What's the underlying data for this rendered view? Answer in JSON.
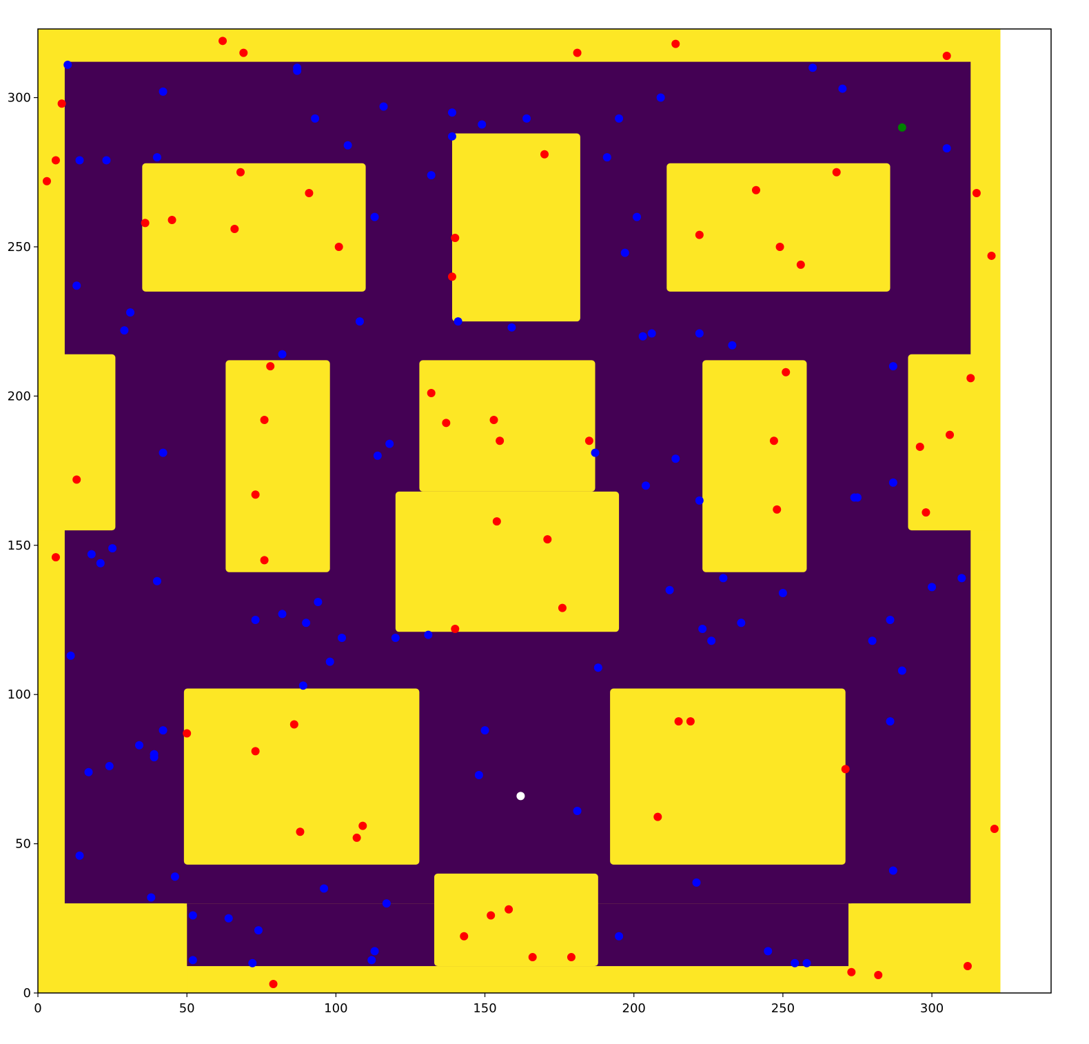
{
  "chart_data": {
    "type": "scatter",
    "title": "",
    "xlabel": "",
    "ylabel": "",
    "xlim": [
      0,
      340
    ],
    "ylim": [
      0,
      323
    ],
    "grid": false,
    "x_ticks": [
      0,
      50,
      100,
      150,
      200,
      250,
      300
    ],
    "y_ticks": [
      0,
      50,
      100,
      150,
      200,
      250,
      300
    ],
    "x_tick_labels": [
      "0",
      "50",
      "100",
      "150",
      "200",
      "250",
      "300"
    ],
    "y_tick_labels": [
      "0",
      "50",
      "100",
      "150",
      "200",
      "250",
      "300"
    ],
    "background_image": {
      "description": "occupancy grid map",
      "free_color": "#440154",
      "obstacle_color": "#fde725",
      "map_extent": {
        "x": [
          0,
          323
        ],
        "y": [
          0,
          323
        ]
      },
      "free_region_main": [
        9,
        30,
        313,
        312
      ],
      "free_region_bottom": [
        50,
        9,
        272,
        30
      ],
      "obstacles": [
        {
          "name": "obstacle-top-left-block",
          "x": [
            35,
            110
          ],
          "y": [
            235,
            278
          ]
        },
        {
          "name": "obstacle-top-center-block",
          "x": [
            139,
            182
          ],
          "y": [
            225,
            288
          ]
        },
        {
          "name": "obstacle-top-right-block",
          "x": [
            211,
            286
          ],
          "y": [
            235,
            278
          ]
        },
        {
          "name": "obstacle-left-wall-bump",
          "x": [
            0,
            26
          ],
          "y": [
            155,
            214
          ]
        },
        {
          "name": "obstacle-left-pillar",
          "x": [
            63,
            98
          ],
          "y": [
            141,
            212
          ]
        },
        {
          "name": "obstacle-center-upper",
          "x": [
            128,
            187
          ],
          "y": [
            168,
            212
          ]
        },
        {
          "name": "obstacle-center-lower",
          "x": [
            120,
            195
          ],
          "y": [
            121,
            168
          ]
        },
        {
          "name": "obstacle-right-pillar",
          "x": [
            223,
            258
          ],
          "y": [
            141,
            212
          ]
        },
        {
          "name": "obstacle-right-wall-bump",
          "x": [
            292,
            323
          ],
          "y": [
            155,
            214
          ]
        },
        {
          "name": "obstacle-bottom-left-block",
          "x": [
            49,
            128
          ],
          "y": [
            43,
            102
          ]
        },
        {
          "name": "obstacle-bottom-right-block",
          "x": [
            192,
            271
          ],
          "y": [
            43,
            102
          ]
        },
        {
          "name": "obstacle-bottom-center-block",
          "x": [
            133,
            188
          ],
          "y": [
            9,
            40
          ]
        },
        {
          "name": "obstacle-bottom-left-corner",
          "x": [
            0,
            50
          ],
          "y": [
            0,
            30
          ]
        },
        {
          "name": "obstacle-bottom-right-corner",
          "x": [
            272,
            323
          ],
          "y": [
            0,
            30
          ]
        }
      ]
    },
    "series": [
      {
        "color": "#ff0000",
        "points": [
          [
            62,
            319
          ],
          [
            69,
            315
          ],
          [
            181,
            315
          ],
          [
            214,
            318
          ],
          [
            305,
            314
          ],
          [
            8,
            298
          ],
          [
            6,
            279
          ],
          [
            3,
            272
          ],
          [
            68,
            275
          ],
          [
            91,
            268
          ],
          [
            36,
            258
          ],
          [
            45,
            259
          ],
          [
            66,
            256
          ],
          [
            101,
            250
          ],
          [
            170,
            281
          ],
          [
            140,
            253
          ],
          [
            139,
            240
          ],
          [
            268,
            275
          ],
          [
            241,
            269
          ],
          [
            315,
            268
          ],
          [
            222,
            254
          ],
          [
            249,
            250
          ],
          [
            256,
            244
          ],
          [
            320,
            247
          ],
          [
            78,
            210
          ],
          [
            76,
            192
          ],
          [
            13,
            172
          ],
          [
            73,
            167
          ],
          [
            6,
            146
          ],
          [
            76,
            145
          ],
          [
            132,
            201
          ],
          [
            137,
            191
          ],
          [
            153,
            192
          ],
          [
            155,
            185
          ],
          [
            185,
            185
          ],
          [
            154,
            158
          ],
          [
            171,
            152
          ],
          [
            176,
            129
          ],
          [
            140,
            122
          ],
          [
            251,
            208
          ],
          [
            313,
            206
          ],
          [
            306,
            187
          ],
          [
            296,
            183
          ],
          [
            247,
            185
          ],
          [
            248,
            162
          ],
          [
            298,
            161
          ],
          [
            50,
            87
          ],
          [
            86,
            90
          ],
          [
            73,
            81
          ],
          [
            88,
            54
          ],
          [
            109,
            56
          ],
          [
            107,
            52
          ],
          [
            215,
            91
          ],
          [
            219,
            91
          ],
          [
            208,
            59
          ],
          [
            271,
            75
          ],
          [
            321,
            55
          ],
          [
            79,
            3
          ],
          [
            143,
            19
          ],
          [
            152,
            26
          ],
          [
            158,
            28
          ],
          [
            166,
            12
          ],
          [
            179,
            12
          ],
          [
            273,
            7
          ],
          [
            282,
            6
          ],
          [
            312,
            9
          ]
        ]
      },
      {
        "color": "#0000ff",
        "points": [
          [
            10,
            311
          ],
          [
            87,
            310
          ],
          [
            87,
            309
          ],
          [
            42,
            302
          ],
          [
            116,
            297
          ],
          [
            93,
            293
          ],
          [
            139,
            295
          ],
          [
            149,
            291
          ],
          [
            164,
            293
          ],
          [
            195,
            293
          ],
          [
            209,
            300
          ],
          [
            260,
            310
          ],
          [
            270,
            303
          ],
          [
            14,
            279
          ],
          [
            23,
            279
          ],
          [
            40,
            280
          ],
          [
            104,
            284
          ],
          [
            139,
            287
          ],
          [
            132,
            274
          ],
          [
            191,
            280
          ],
          [
            305,
            283
          ],
          [
            113,
            260
          ],
          [
            201,
            260
          ],
          [
            197,
            248
          ],
          [
            13,
            237
          ],
          [
            31,
            228
          ],
          [
            29,
            222
          ],
          [
            108,
            225
          ],
          [
            141,
            225
          ],
          [
            159,
            223
          ],
          [
            82,
            214
          ],
          [
            203,
            220
          ],
          [
            206,
            221
          ],
          [
            222,
            221
          ],
          [
            233,
            217
          ],
          [
            287,
            210
          ],
          [
            118,
            184
          ],
          [
            114,
            180
          ],
          [
            42,
            181
          ],
          [
            187,
            181
          ],
          [
            214,
            179
          ],
          [
            204,
            170
          ],
          [
            222,
            165
          ],
          [
            274,
            166
          ],
          [
            275,
            166
          ],
          [
            287,
            171
          ],
          [
            25,
            149
          ],
          [
            18,
            147
          ],
          [
            21,
            144
          ],
          [
            40,
            138
          ],
          [
            73,
            125
          ],
          [
            82,
            127
          ],
          [
            90,
            124
          ],
          [
            94,
            131
          ],
          [
            102,
            119
          ],
          [
            120,
            119
          ],
          [
            131,
            120
          ],
          [
            212,
            135
          ],
          [
            230,
            139
          ],
          [
            236,
            124
          ],
          [
            250,
            134
          ],
          [
            223,
            122
          ],
          [
            226,
            118
          ],
          [
            286,
            125
          ],
          [
            280,
            118
          ],
          [
            300,
            136
          ],
          [
            310,
            139
          ],
          [
            11,
            113
          ],
          [
            98,
            111
          ],
          [
            89,
            103
          ],
          [
            188,
            109
          ],
          [
            290,
            108
          ],
          [
            42,
            88
          ],
          [
            34,
            83
          ],
          [
            39,
            80
          ],
          [
            39,
            79
          ],
          [
            24,
            76
          ],
          [
            17,
            74
          ],
          [
            150,
            88
          ],
          [
            148,
            73
          ],
          [
            181,
            61
          ],
          [
            286,
            91
          ],
          [
            14,
            46
          ],
          [
            46,
            39
          ],
          [
            38,
            32
          ],
          [
            96,
            35
          ],
          [
            117,
            30
          ],
          [
            52,
            26
          ],
          [
            64,
            25
          ],
          [
            74,
            21
          ],
          [
            113,
            14
          ],
          [
            112,
            11
          ],
          [
            52,
            11
          ],
          [
            72,
            10
          ],
          [
            195,
            19
          ],
          [
            221,
            37
          ],
          [
            287,
            41
          ],
          [
            245,
            14
          ],
          [
            254,
            10
          ],
          [
            258,
            10
          ]
        ]
      },
      {
        "color": "#008000",
        "points": [
          [
            290,
            290
          ]
        ]
      },
      {
        "color": "#ffffff",
        "points": [
          [
            162,
            66
          ]
        ]
      }
    ]
  }
}
